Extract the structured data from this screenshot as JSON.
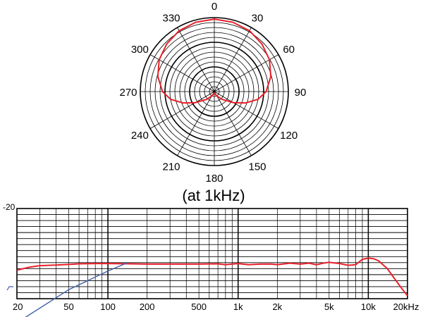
{
  "polar_chart": {
    "type": "polar",
    "title": "(at 1kHz)",
    "angle_labels": [
      "0",
      "30",
      "60",
      "90",
      "120",
      "150",
      "180",
      "210",
      "240",
      "270",
      "300",
      "330"
    ],
    "angles_deg": [
      0,
      30,
      60,
      90,
      120,
      150,
      180,
      210,
      240,
      270,
      300,
      330
    ],
    "ring_count": 15,
    "bold_rings": [
      5,
      10,
      15
    ],
    "series": [
      {
        "color": "#e8202a",
        "angles_deg": [
          0,
          15,
          30,
          45,
          60,
          75,
          90,
          100,
          110,
          120,
          135,
          150,
          165,
          180
        ],
        "radius_fraction": [
          0.98,
          0.97,
          0.95,
          0.91,
          0.86,
          0.79,
          0.7,
          0.6,
          0.45,
          0.3,
          0.15,
          0.07,
          0.03,
          0.02
        ]
      }
    ]
  },
  "chart_data": [
    {
      "type": "line",
      "title": "",
      "xlabel": "",
      "ylabel": "",
      "x_scale": "log",
      "xlim": [
        20,
        20000
      ],
      "ylim": [
        -20,
        10
      ],
      "y_tick_labels": [
        "-20"
      ],
      "x_tick_values": [
        20,
        50,
        100,
        200,
        500,
        1000,
        2000,
        5000,
        10000,
        20000
      ],
      "x_tick_labels": [
        "20",
        "50",
        "100",
        "200",
        "500",
        "1k",
        "2k",
        "5k",
        "10k",
        "20kHz"
      ],
      "grid": true,
      "series": [
        {
          "color": "#e8202a",
          "x": [
            20,
            25,
            30,
            40,
            50,
            60,
            80,
            100,
            150,
            200,
            300,
            500,
            700,
            800,
            900,
            1000,
            1200,
            1500,
            1800,
            2000,
            2500,
            3000,
            3500,
            4000,
            4500,
            5000,
            6000,
            7000,
            8000,
            9000,
            10000,
            11000,
            12000,
            14000,
            16000,
            18000,
            20000
          ],
          "y": [
            -10.5,
            -9.5,
            -9.0,
            -8.8,
            -8.6,
            -8.4,
            -8.3,
            -8.3,
            -8.4,
            -8.5,
            -8.5,
            -8.5,
            -8.4,
            -8.7,
            -8.5,
            -8.3,
            -8.7,
            -8.5,
            -8.5,
            -8.7,
            -8.2,
            -8.5,
            -8.2,
            -8.7,
            -8.2,
            -7.9,
            -8.3,
            -8.9,
            -8.7,
            -6.9,
            -6.5,
            -6.7,
            -7.4,
            -10.0,
            -13.5,
            -16.5,
            -19.0
          ]
        },
        {
          "color": "#3b5fa8",
          "x": [
            20,
            50,
            100,
            140
          ],
          "y": [
            -28.0,
            -17.0,
            -10.8,
            -8.1
          ]
        }
      ]
    }
  ]
}
